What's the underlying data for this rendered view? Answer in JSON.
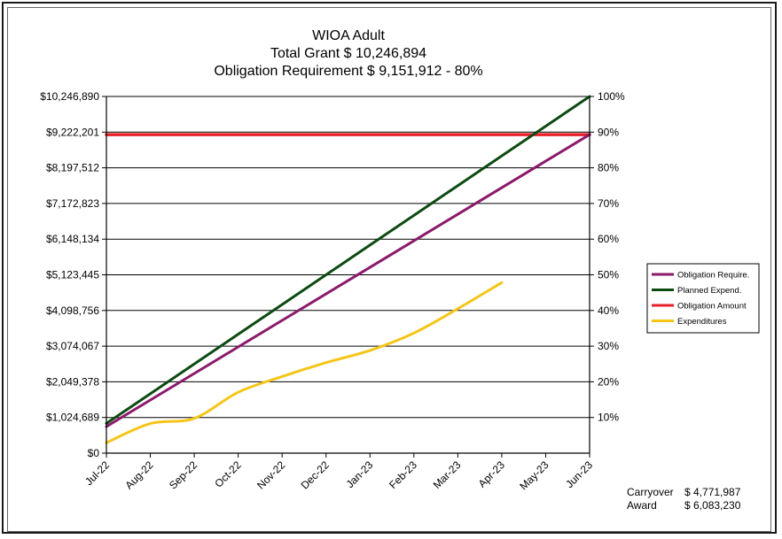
{
  "chart_data": {
    "type": "line",
    "title": "WIOA Adult",
    "subtitle_lines": [
      "Total Grant  $ 10,246,894",
      "Obligation Requirement  $ 9,151,912 -  80%"
    ],
    "categories": [
      "Jul-22",
      "Aug-22",
      "Sep-22",
      "Oct-22",
      "Nov-22",
      "Dec-22",
      "Jan-23",
      "Feb-23",
      "Mar-23",
      "Apr-23",
      "May-23",
      "Jun-23"
    ],
    "y_ticks": [
      0,
      1024689,
      2049378,
      3074067,
      4098756,
      5123445,
      6148134,
      7172823,
      8197512,
      9222201,
      10246890
    ],
    "y_tick_labels": [
      "$0",
      "$1,024,689",
      "$2,049,378",
      "$3,074,067",
      "$4,098,756",
      "$5,123,445",
      "$6,148,134",
      "$7,172,823",
      "$8,197,512",
      "$9,222,201",
      "$10,246,890"
    ],
    "ylim": [
      0,
      10246890
    ],
    "y2_ticks": [
      0.1,
      0.2,
      0.3,
      0.4,
      0.5,
      0.6,
      0.7,
      0.8,
      0.9,
      1.0
    ],
    "y2_tick_labels": [
      "10%",
      "20%",
      "30%",
      "40%",
      "50%",
      "60%",
      "70%",
      "80%",
      "90%",
      "100%"
    ],
    "y2lim": [
      0,
      1.0
    ],
    "grid": true,
    "legend_position": "right",
    "series": [
      {
        "name": "Obligation Require.",
        "color": "#8b1a6b",
        "values": [
          762659,
          1525318,
          2287977,
          3050637,
          3813296,
          4575956,
          5338615,
          6101274,
          6863934,
          7626593,
          8389253,
          9151912
        ]
      },
      {
        "name": "Planned Expend.",
        "color": "#0d4a12",
        "values": [
          853908,
          1707815,
          2561724,
          3415631,
          4269539,
          5123447,
          5977355,
          6831263,
          7685171,
          8539078,
          9392986,
          10246894
        ]
      },
      {
        "name": "Obligation Amount",
        "color": "#e8202a",
        "values": [
          9151912,
          9151912,
          9151912,
          9151912,
          9151912,
          9151912,
          9151912,
          9151912,
          9151912,
          9151912,
          9151912,
          9151912
        ]
      },
      {
        "name": "Expenditures",
        "color": "#f5c518",
        "values": [
          300000,
          850000,
          1000000,
          1750000,
          2200000,
          2600000,
          2950000,
          3450000,
          4150000,
          4900000,
          null,
          null
        ]
      }
    ]
  },
  "footer": {
    "carryover_label": "Carryover",
    "carryover_value": "$ 4,771,987",
    "award_label": "Award",
    "award_value": "$ 6,083,230"
  }
}
